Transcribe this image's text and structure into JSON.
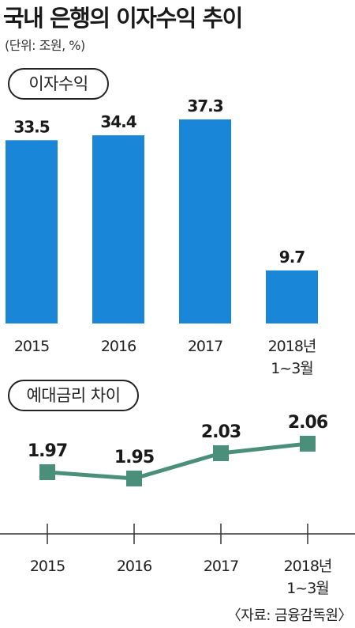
{
  "title": "국내 은행의 이자수익 추이",
  "unit_note": "(단위: 조원, %)",
  "source": "〈자료: 금융감독원〉",
  "colors": {
    "bar": "#1a86d8",
    "line": "#4a8f7a",
    "axis": "#333333"
  },
  "chart_data": [
    {
      "type": "bar",
      "title": "이자수익",
      "categories": [
        "2015",
        "2016",
        "2017",
        "2018년|1~3월"
      ],
      "values": [
        33.5,
        34.4,
        37.3,
        9.7
      ],
      "ylim": [
        0,
        37.3
      ]
    },
    {
      "type": "line",
      "title": "예대금리 차이",
      "categories": [
        "2015",
        "2016",
        "2017",
        "2018년|1~3월"
      ],
      "values": [
        1.97,
        1.95,
        2.03,
        2.06
      ],
      "ylim": [
        1.8,
        2.1
      ]
    }
  ]
}
